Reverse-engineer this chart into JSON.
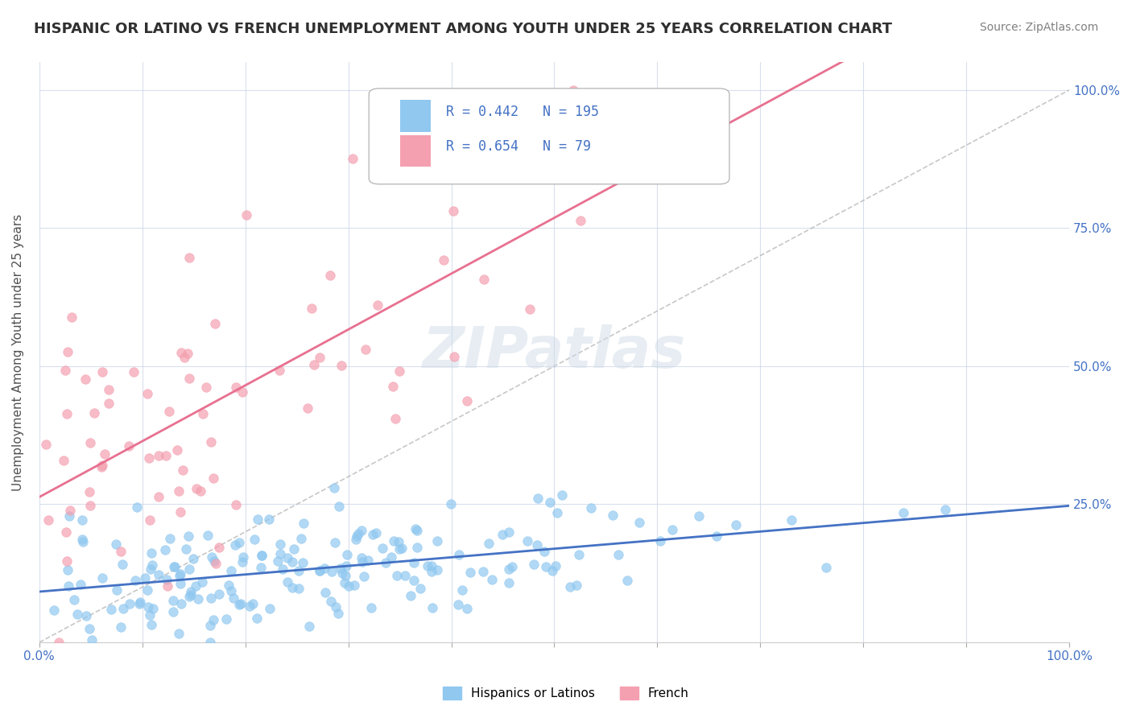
{
  "title": "HISPANIC OR LATINO VS FRENCH UNEMPLOYMENT AMONG YOUTH UNDER 25 YEARS CORRELATION CHART",
  "source": "Source: ZipAtlas.com",
  "xlabel": "",
  "ylabel": "Unemployment Among Youth under 25 years",
  "xlim": [
    0.0,
    1.0
  ],
  "ylim": [
    0.0,
    1.05
  ],
  "xticks": [
    0.0,
    0.1,
    0.2,
    0.3,
    0.4,
    0.5,
    0.6,
    0.7,
    0.8,
    0.9,
    1.0
  ],
  "xticklabels": [
    "0.0%",
    "",
    "",
    "",
    "",
    "",
    "",
    "",
    "",
    "",
    "100.0%"
  ],
  "yticks": [
    0.0,
    0.25,
    0.5,
    0.75,
    1.0
  ],
  "yticklabels": [
    "",
    "25.0%",
    "50.0%",
    "75.0%",
    "100.0%"
  ],
  "hispanic_R": 0.442,
  "hispanic_N": 195,
  "french_R": 0.654,
  "french_N": 79,
  "hispanic_color": "#90c8f0",
  "french_color": "#f4a0b0",
  "hispanic_line_color": "#4472c4",
  "french_line_color": "#e87090",
  "diagonal_color": "#b0b0b0",
  "watermark": "ZIPatlas",
  "legend_label_1": "Hispanics or Latinos",
  "legend_label_2": "French",
  "background_color": "#ffffff",
  "grid_color": "#d0d8e8",
  "title_color": "#303030",
  "axis_label_color": "#4472c4",
  "tick_label_color": "#4472c4",
  "seed_hispanic": 42,
  "seed_french": 123
}
